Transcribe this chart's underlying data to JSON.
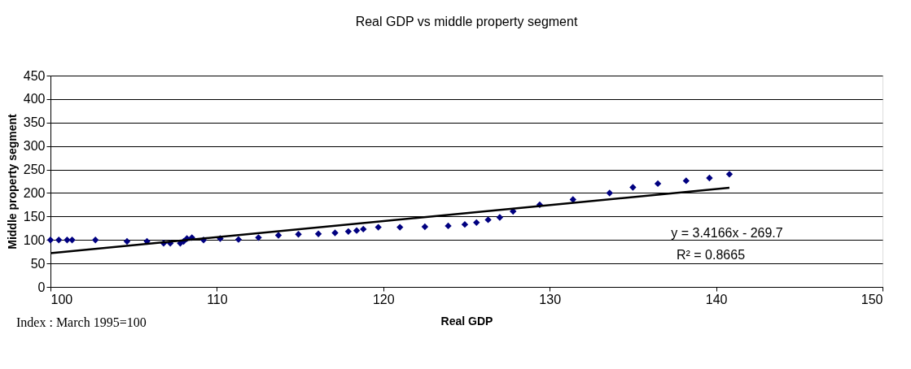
{
  "chart_data": {
    "type": "scatter",
    "title": "Real GDP vs middle property segment",
    "xlabel": "Real GDP",
    "ylabel": "Middle property segment",
    "xlim": [
      100,
      150
    ],
    "xticks": [
      100,
      110,
      120,
      130,
      140,
      150
    ],
    "ylim": [
      0,
      450
    ],
    "yticks": [
      0,
      50,
      100,
      150,
      200,
      250,
      300,
      350,
      400,
      450
    ],
    "grid": "y",
    "legend": false,
    "marker": "diamond",
    "series": [
      {
        "color": "#000080",
        "x": [
          100,
          100.5,
          101,
          101.3,
          102.7,
          104.6,
          105.8,
          106.8,
          107.2,
          107.8,
          108,
          108.2,
          108.5,
          109.2,
          110.2,
          111.3,
          112.5,
          113.7,
          114.9,
          116.1,
          117.1,
          117.9,
          118.4,
          118.8,
          119.7,
          121,
          122.5,
          123.9,
          124.9,
          125.6,
          126.3,
          127,
          127.8,
          129.4,
          131.4,
          133.6,
          135,
          136.5,
          138.2,
          139.6,
          140.8
        ],
        "values": [
          100,
          100,
          100,
          100,
          100,
          97,
          97,
          93,
          93,
          93,
          97,
          103,
          105,
          100,
          103,
          101,
          105,
          110,
          112,
          113,
          115,
          118,
          120,
          123,
          127,
          127,
          128,
          130,
          133,
          137,
          143,
          148,
          161,
          175,
          186,
          200,
          212,
          220,
          226,
          232,
          240
        ]
      },
      {
        "type": "line",
        "marker": "none",
        "color": "#000000",
        "x": [
          100,
          140.8
        ],
        "values": [
          72,
          211
        ]
      }
    ],
    "annotations": [
      "y = 3.4166x - 269.7",
      "R² = 0.8665",
      "Index : March 1995=100"
    ]
  }
}
